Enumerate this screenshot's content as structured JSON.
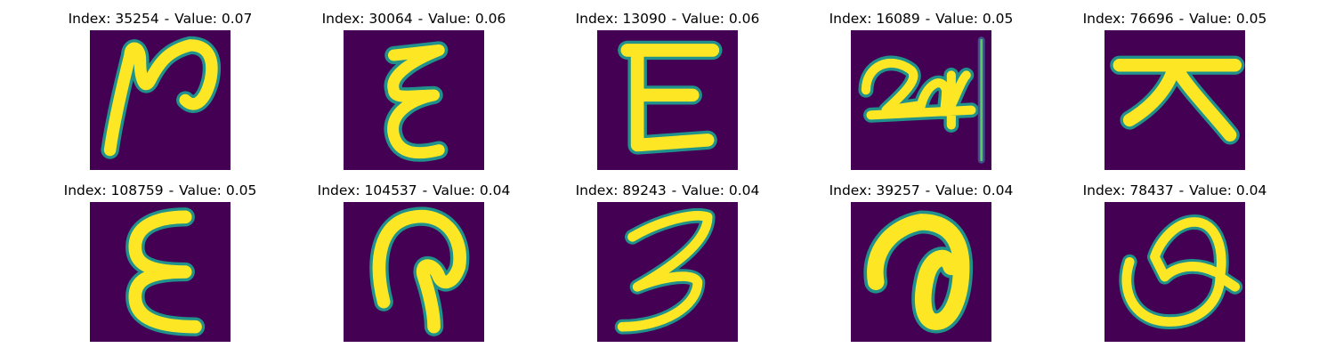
{
  "figure": {
    "colormap": "viridis",
    "background_color": "#440154",
    "stroke_color": "#fde725",
    "edge_color": "#21918c",
    "panels": [
      {
        "index": "35254",
        "value": "0.07",
        "shape": "glyph-n-curl"
      },
      {
        "index": "30064",
        "value": "0.06",
        "shape": "glyph-double-epsilon"
      },
      {
        "index": "13090",
        "value": "0.06",
        "shape": "glyph-E"
      },
      {
        "index": "16089",
        "value": "0.05",
        "shape": "glyph-24-scribble"
      },
      {
        "index": "76696",
        "value": "0.05",
        "shape": "glyph-dai"
      },
      {
        "index": "108759",
        "value": "0.05",
        "shape": "glyph-epsilon"
      },
      {
        "index": "104537",
        "value": "0.04",
        "shape": "glyph-arch-hook"
      },
      {
        "index": "89243",
        "value": "0.04",
        "shape": "glyph-3"
      },
      {
        "index": "39257",
        "value": "0.04",
        "shape": "glyph-loop"
      },
      {
        "index": "78437",
        "value": "0.04",
        "shape": "glyph-swirl"
      }
    ]
  }
}
